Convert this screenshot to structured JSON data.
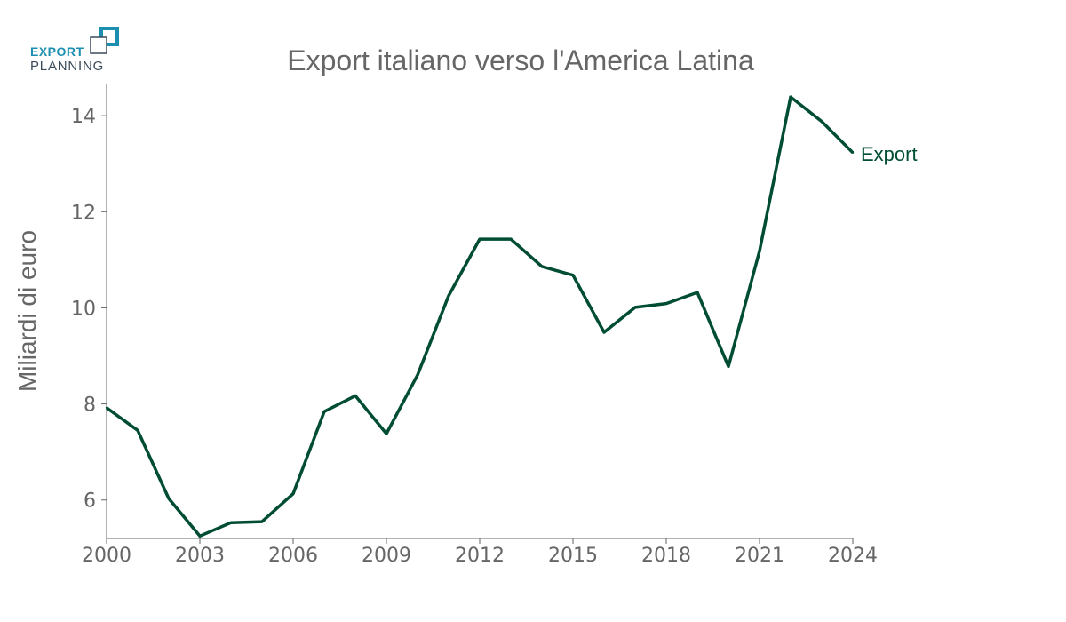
{
  "logo": {
    "line1": "EXPORT",
    "line2": "PLANNING",
    "accent": "#1c8fb0",
    "text_color": "#3a4a5a"
  },
  "title": "Export italiano verso l'America Latina",
  "colors": {
    "line": "#004d33",
    "axis": "#666666",
    "text": "#666666"
  },
  "chart_data": {
    "type": "line",
    "title": "Export italiano verso l'America Latina",
    "xlabel": "",
    "ylabel": "Miliardi di euro",
    "xlim": [
      2000,
      2024
    ],
    "ylim": [
      5.2,
      14.65
    ],
    "xticks": [
      2000,
      2003,
      2006,
      2009,
      2012,
      2015,
      2018,
      2021,
      2024
    ],
    "yticks": [
      6,
      8,
      10,
      12,
      14
    ],
    "grid": false,
    "legend": "direct label at end of line",
    "x": [
      2000,
      2001,
      2002,
      2003,
      2004,
      2005,
      2006,
      2007,
      2008,
      2009,
      2010,
      2011,
      2012,
      2013,
      2014,
      2015,
      2016,
      2017,
      2018,
      2019,
      2020,
      2021,
      2022,
      2023,
      2024
    ],
    "series": [
      {
        "name": "Export",
        "values": [
          7.92,
          7.45,
          6.03,
          5.25,
          5.53,
          5.55,
          6.13,
          7.84,
          8.17,
          7.38,
          8.6,
          10.25,
          11.43,
          11.43,
          10.86,
          10.68,
          9.49,
          10.01,
          10.09,
          10.32,
          8.78,
          11.18,
          14.39,
          13.88,
          13.23
        ],
        "color": "#004d33"
      }
    ]
  }
}
